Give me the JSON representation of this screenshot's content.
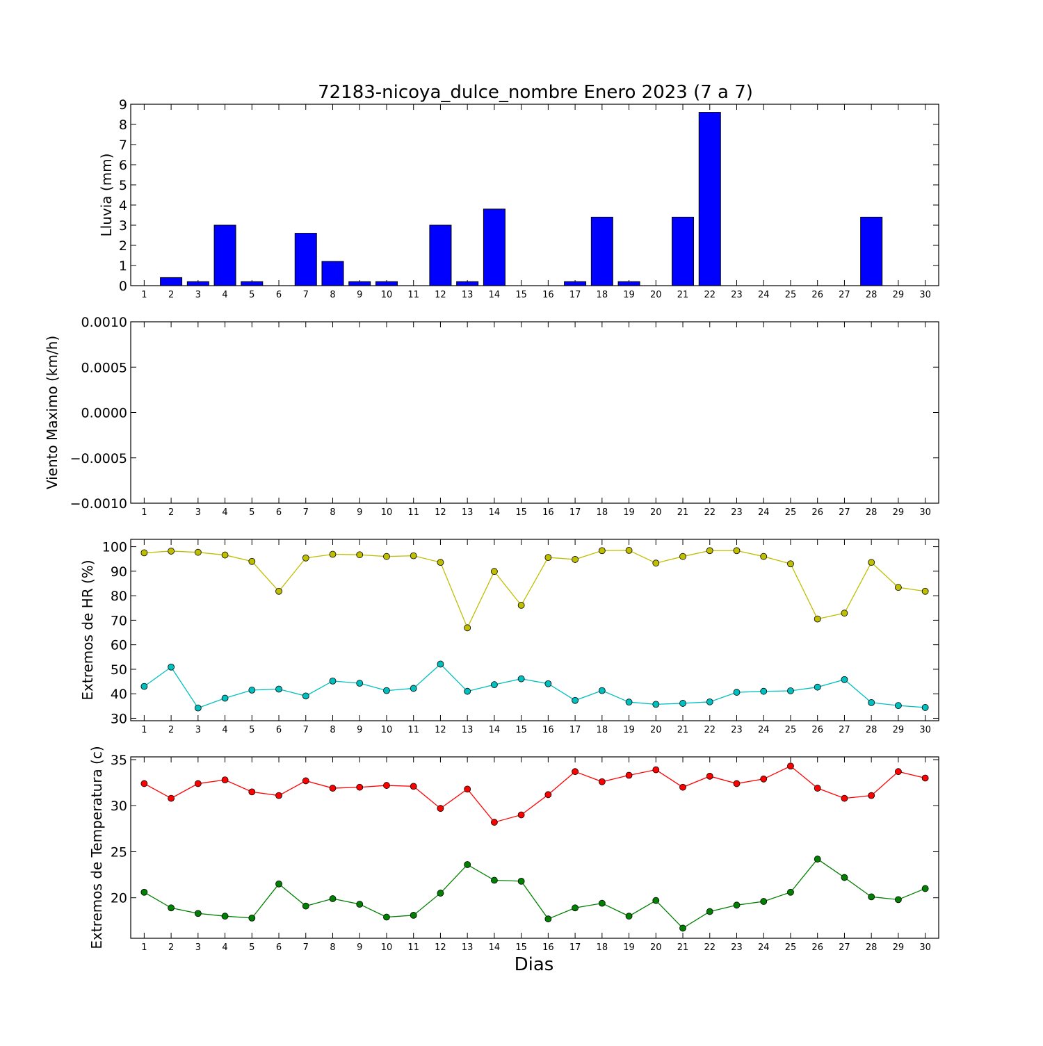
{
  "chart_data": [
    {
      "type": "bar",
      "title": "72183-nicoya_dulce_nombre Enero 2023  (7 a 7)",
      "ylabel": "Lluvia (mm)",
      "ylim": [
        0,
        9
      ],
      "yticks": [
        "0",
        "1",
        "2",
        "3",
        "4",
        "5",
        "6",
        "7",
        "8",
        "9"
      ],
      "x": [
        1,
        2,
        3,
        4,
        5,
        6,
        7,
        8,
        9,
        10,
        11,
        12,
        13,
        14,
        15,
        16,
        17,
        18,
        19,
        20,
        21,
        22,
        23,
        24,
        25,
        26,
        27,
        28,
        29,
        30
      ],
      "values": [
        0,
        0.4,
        0.2,
        3.0,
        0.2,
        0,
        2.6,
        1.2,
        0.2,
        0.2,
        0,
        3.0,
        0.2,
        3.8,
        0,
        0,
        0.2,
        3.4,
        0.2,
        0,
        3.4,
        8.6,
        0,
        0,
        0,
        0,
        0,
        3.4,
        0,
        0
      ],
      "color": "#0000ff"
    },
    {
      "type": "line",
      "ylabel": "Viento Maximo (km/h)",
      "ylim": [
        -0.001,
        0.001
      ],
      "yticks": [
        "−0.0010",
        "−0.0005",
        "0.0000",
        "0.0005",
        "0.0010"
      ],
      "x": [
        1,
        2,
        3,
        4,
        5,
        6,
        7,
        8,
        9,
        10,
        11,
        12,
        13,
        14,
        15,
        16,
        17,
        18,
        19,
        20,
        21,
        22,
        23,
        24,
        25,
        26,
        27,
        28,
        29,
        30
      ],
      "series": []
    },
    {
      "type": "line",
      "ylabel": "Extremos de HR (%)",
      "ylim": [
        29,
        103
      ],
      "yticks": [
        "30",
        "40",
        "50",
        "60",
        "70",
        "80",
        "90",
        "100"
      ],
      "x": [
        1,
        2,
        3,
        4,
        5,
        6,
        7,
        8,
        9,
        10,
        11,
        12,
        13,
        14,
        15,
        16,
        17,
        18,
        19,
        20,
        21,
        22,
        23,
        24,
        25,
        26,
        27,
        28,
        29,
        30
      ],
      "series": [
        {
          "color": "#bfbf00",
          "values": [
            97.5,
            98.2,
            97.7,
            96.6,
            94.0,
            81.8,
            95.4,
            96.9,
            96.7,
            96.0,
            96.3,
            93.6,
            66.9,
            89.9,
            76.1,
            95.6,
            94.8,
            98.4,
            98.5,
            93.3,
            96.0,
            98.4,
            98.4,
            96.0,
            93.0,
            70.5,
            72.9,
            93.6,
            83.4,
            81.8
          ]
        },
        {
          "color": "#00bfbf",
          "values": [
            43.0,
            50.9,
            34.2,
            38.2,
            41.5,
            41.9,
            39.1,
            45.2,
            44.3,
            41.3,
            42.2,
            52.1,
            41.0,
            43.7,
            46.1,
            44.1,
            37.3,
            41.3,
            36.6,
            35.7,
            36.1,
            36.7,
            40.6,
            41.0,
            41.2,
            42.7,
            45.8,
            36.4,
            35.2,
            34.4
          ]
        }
      ]
    },
    {
      "type": "line",
      "ylabel": "Extremos de Temperatura (c)",
      "xlabel": "Dias",
      "ylim": [
        15.6,
        35.3
      ],
      "yticks": [
        "20",
        "25",
        "30",
        "35"
      ],
      "ytick_values": [
        20,
        25,
        30,
        35
      ],
      "x": [
        1,
        2,
        3,
        4,
        5,
        6,
        7,
        8,
        9,
        10,
        11,
        12,
        13,
        14,
        15,
        16,
        17,
        18,
        19,
        20,
        21,
        22,
        23,
        24,
        25,
        26,
        27,
        28,
        29,
        30
      ],
      "series": [
        {
          "color": "#ff0000",
          "values": [
            32.4,
            30.8,
            32.4,
            32.8,
            31.5,
            31.1,
            32.7,
            31.9,
            32.0,
            32.2,
            32.1,
            29.7,
            31.8,
            28.2,
            29.0,
            31.2,
            33.7,
            32.6,
            33.3,
            33.9,
            32.0,
            33.2,
            32.4,
            32.9,
            34.3,
            31.9,
            30.8,
            31.1,
            33.7,
            33.0
          ]
        },
        {
          "color": "#008000",
          "values": [
            20.6,
            18.9,
            18.3,
            18.0,
            17.8,
            21.5,
            19.1,
            19.9,
            19.3,
            17.9,
            18.1,
            20.5,
            23.6,
            21.9,
            21.8,
            17.7,
            18.9,
            19.4,
            18.0,
            19.7,
            16.7,
            18.5,
            19.2,
            19.6,
            20.6,
            24.2,
            22.2,
            20.1,
            19.8,
            21.0
          ]
        }
      ]
    }
  ]
}
